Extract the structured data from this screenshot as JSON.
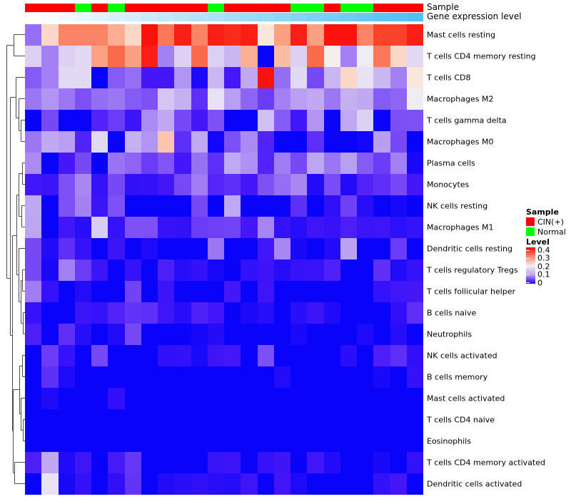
{
  "annotations": {
    "sample_label": "Sample",
    "gene_label": "Gene expression level",
    "sample_track": [
      "CIN(+)",
      "CIN(+)",
      "CIN(+)",
      "Normal",
      "CIN(+)",
      "Normal",
      "CIN(+)",
      "CIN(+)",
      "CIN(+)",
      "CIN(+)",
      "CIN(+)",
      "Normal",
      "CIN(+)",
      "CIN(+)",
      "CIN(+)",
      "CIN(+)",
      "Normal",
      "Normal",
      "CIN(+)",
      "Normal",
      "Normal",
      "CIN(+)",
      "CIN(+)",
      "CIN(+)"
    ],
    "sample_colors": {
      "CIN(+)": "#ff0000",
      "Normal": "#00ff00"
    },
    "gene_gradient": {
      "start": "#ffffff",
      "end": "#4fc0f2"
    }
  },
  "legend": {
    "sample_title": "Sample",
    "sample_items": [
      {
        "label": "CIN(+)",
        "color": "#ff0000"
      },
      {
        "label": "Normal",
        "color": "#00ff00"
      }
    ],
    "level_title": "Level",
    "level_ticks": [
      "0.4",
      "0.3",
      "0.2",
      "0.1",
      "0"
    ]
  },
  "chart_data": {
    "type": "heatmap",
    "title": "",
    "columns": 24,
    "value_range": [
      0,
      0.4
    ],
    "colormap": {
      "low": "#0a03fa",
      "mid": "#ffffff",
      "high": "#fa0505",
      "mid_at": 0.2
    },
    "row_clustering": true,
    "column_clustering": false,
    "rows": [
      "Mast cells resting",
      "T cells CD4 memory resting",
      "T cells CD8",
      "Macrophages M2",
      "T cells gamma delta",
      "Macrophages M0",
      "Plasma cells",
      "Monocytes",
      "NK cells resting",
      "Macrophages M1",
      "Dendritic cells resting",
      "T cells regulatory  Tregs",
      "T cells follicular helper",
      "B cells naive",
      "Neutrophils",
      "NK cells activated",
      "B cells memory",
      "Mast cells activated",
      "T cells CD4 naive",
      "Eosinophils",
      "T cells CD4 memory activated",
      "Dendritic cells activated"
    ],
    "values": [
      [
        0.07,
        0.23,
        0.3,
        0.3,
        0.3,
        0.27,
        0.23,
        0.39,
        0.31,
        0.38,
        0.3,
        0.38,
        0.37,
        0.38,
        0.21,
        0.28,
        0.38,
        0.28,
        0.39,
        0.39,
        0.3,
        0.35,
        0.35,
        0.38
      ],
      [
        0.13,
        0.08,
        0.13,
        0.14,
        0.28,
        0.32,
        0.28,
        0.38,
        0.08,
        0.13,
        0.32,
        0.13,
        0.11,
        0.27,
        0.0,
        0.26,
        0.13,
        0.32,
        0.19,
        0.08,
        0.17,
        0.31,
        0.23,
        0.14
      ],
      [
        0.06,
        0.08,
        0.14,
        0.14,
        0.0,
        0.06,
        0.07,
        0.03,
        0.03,
        0.09,
        0.01,
        0.11,
        0.03,
        0.1,
        0.39,
        0.07,
        0.14,
        0.05,
        0.11,
        0.23,
        0.15,
        0.11,
        0.08,
        0.21
      ],
      [
        0.075,
        0.09,
        0.075,
        0.055,
        0.07,
        0.075,
        0.06,
        0.055,
        0.12,
        0.105,
        0.04,
        0.15,
        0.095,
        0.065,
        0.045,
        0.08,
        0.095,
        0.1,
        0.075,
        0.105,
        0.1,
        0.06,
        0.065,
        0.17
      ],
      [
        0.0,
        0.05,
        0.0,
        0.0,
        0.035,
        0.045,
        0.025,
        0.085,
        0.1,
        0.05,
        0.03,
        0.055,
        0.0,
        0.0,
        0.115,
        0.06,
        0.028,
        0.09,
        0.0,
        0.1,
        0.13,
        0.0,
        0.053,
        0.055
      ],
      [
        0.075,
        0.1,
        0.095,
        0.035,
        0.14,
        0.0,
        0.105,
        0.09,
        0.25,
        0.04,
        0.1,
        0.005,
        0.054,
        0.085,
        0.035,
        0.0,
        0.0,
        0.04,
        0.0,
        0.0,
        0.005,
        0.095,
        0.05,
        0.0
      ],
      [
        0.085,
        0.0,
        0.03,
        0.05,
        0.0,
        0.073,
        0.065,
        0.045,
        0.057,
        0.03,
        0.072,
        0.04,
        0.1,
        0.088,
        0.035,
        0.078,
        0.05,
        0.098,
        0.074,
        0.095,
        0.06,
        0.045,
        0.08,
        0.008
      ],
      [
        0.028,
        0.025,
        0.055,
        0.083,
        0.022,
        0.05,
        0.02,
        0.021,
        0.029,
        0.05,
        0.078,
        0.036,
        0.04,
        0.03,
        0.055,
        0.07,
        0.083,
        0.012,
        0.052,
        0.012,
        0.035,
        0.04,
        0.05,
        0.03
      ],
      [
        0.1,
        0.0,
        0.055,
        0.08,
        0.025,
        0.055,
        0.0,
        0.0,
        0.0,
        0.0,
        0.05,
        0.0,
        0.1,
        0.0,
        0.0,
        0.0,
        0.04,
        0.0,
        0.02,
        0.047,
        0.015,
        0.0,
        0.007,
        0.0
      ],
      [
        0.098,
        0.0,
        0.028,
        0.016,
        0.125,
        0.022,
        0.055,
        0.055,
        0.022,
        0.021,
        0.045,
        0.047,
        0.048,
        0.03,
        0.082,
        0.021,
        0.015,
        0.027,
        0.023,
        0.033,
        0.025,
        0.027,
        0.018,
        0.022
      ],
      [
        0.05,
        0.012,
        0.04,
        0.022,
        0.0,
        0.025,
        0.0,
        0.01,
        0.0,
        0.0,
        0.0,
        0.074,
        0.0,
        0.0,
        0.028,
        0.083,
        0.008,
        0.0,
        0.012,
        0.097,
        0.0,
        0.0,
        0.045,
        0.0
      ],
      [
        0.05,
        0.008,
        0.08,
        0.045,
        0.025,
        0.0,
        0.022,
        0.0,
        0.033,
        0.015,
        0.021,
        0.007,
        0.0,
        0.021,
        0.026,
        0.014,
        0.023,
        0.024,
        0.034,
        0.0,
        0.0,
        0.04,
        0.012,
        0.022
      ],
      [
        0.078,
        0.022,
        0.0,
        0.013,
        0.0,
        0.0,
        0.048,
        0.0,
        0.025,
        0.0,
        0.0,
        0.0,
        0.03,
        0.0,
        0.027,
        0.0,
        0.0,
        0.0,
        0.0,
        0.0,
        0.0,
        0.022,
        0.028,
        0.03
      ],
      [
        0.022,
        0.0,
        0.0,
        0.025,
        0.022,
        0.035,
        0.042,
        0.04,
        0.027,
        0.015,
        0.034,
        0.028,
        0.0,
        0.009,
        0.015,
        0.0,
        0.016,
        0.026,
        0.011,
        0.0,
        0.0,
        0.0,
        0.02,
        0.04
      ],
      [
        0.033,
        0.0,
        0.04,
        0.015,
        0.0,
        0.012,
        0.05,
        0.0,
        0.0,
        0.0,
        0.006,
        0.013,
        0.0,
        0.0,
        0.0,
        0.0,
        0.008,
        0.0,
        0.0,
        0.0,
        0.01,
        0.0,
        0.015,
        0.0
      ],
      [
        0.0,
        0.045,
        0.022,
        0.0,
        0.05,
        0.0,
        0.0,
        0.0,
        0.02,
        0.021,
        0.008,
        0.027,
        0.03,
        0.0,
        0.054,
        0.0,
        0.0,
        0.0,
        0.0,
        0.017,
        0.0,
        0.033,
        0.04,
        0.02
      ],
      [
        0.0,
        0.04,
        0.01,
        0.0,
        0.0,
        0.0,
        0.0,
        0.0,
        0.0,
        0.0,
        0.0,
        0.0,
        0.0,
        0.0,
        0.0,
        0.013,
        0.0,
        0.0,
        0.0,
        0.0,
        0.0,
        0.008,
        0.0,
        0.021
      ],
      [
        0.0,
        0.01,
        0.0,
        0.0,
        0.0,
        0.02,
        0.0,
        0.0,
        0.0,
        0.0,
        0.0,
        0.0,
        0.0,
        0.0,
        0.0,
        0.0,
        0.0,
        0.0,
        0.0,
        0.0,
        0.0,
        0.0,
        0.0,
        0.0
      ],
      [
        0.0,
        0.0,
        0.0,
        0.0,
        0.0,
        0.0,
        0.0,
        0.0,
        0.0,
        0.0,
        0.0,
        0.0,
        0.0,
        0.0,
        0.0,
        0.0,
        0.0,
        0.0,
        0.0,
        0.0,
        0.0,
        0.0,
        0.0,
        0.0
      ],
      [
        0.0,
        0.0,
        0.0,
        0.0,
        0.0,
        0.0,
        0.0,
        0.0,
        0.0,
        0.0,
        0.0,
        0.0,
        0.0,
        0.0,
        0.0,
        0.0,
        0.0,
        0.0,
        0.0,
        0.0,
        0.0,
        0.0,
        0.0,
        0.0
      ],
      [
        0.033,
        0.1,
        0.011,
        0.027,
        0.0,
        0.031,
        0.043,
        0.0,
        0.0,
        0.0,
        0.0,
        0.024,
        0.026,
        0.0,
        0.022,
        0.027,
        0.0,
        0.028,
        0.012,
        0.0,
        0.0,
        0.008,
        0.0,
        0.021
      ],
      [
        0.0,
        0.15,
        0.008,
        0.021,
        0.0,
        0.02,
        0.042,
        0.0,
        0.012,
        0.016,
        0.02,
        0.015,
        0.013,
        0.027,
        0.0,
        0.029,
        0.01,
        0.0,
        0.0,
        0.0,
        0.0,
        0.021,
        0.03,
        0.0
      ]
    ]
  }
}
